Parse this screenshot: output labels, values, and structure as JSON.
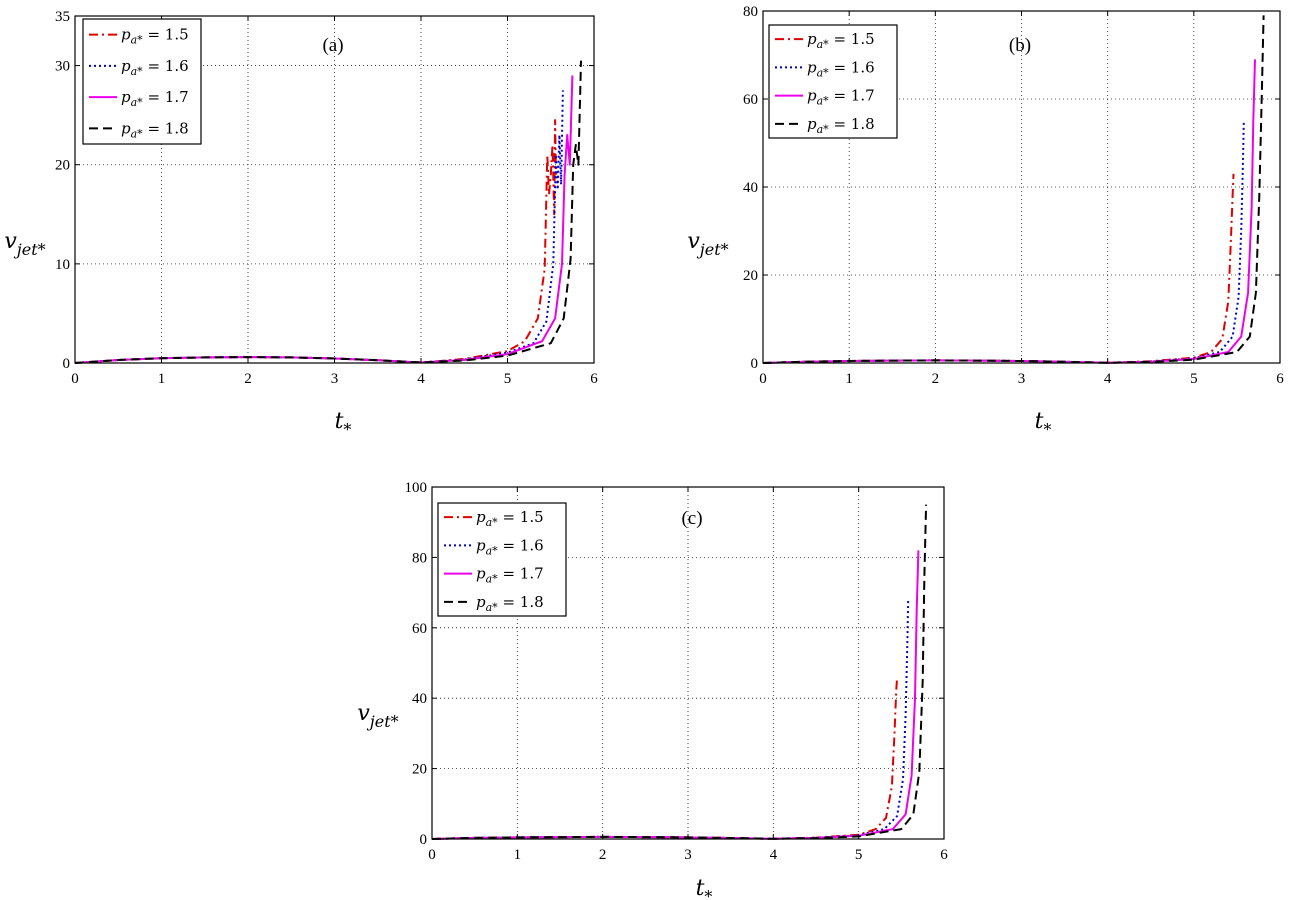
{
  "chart_data": [
    {
      "type": "line",
      "panel_label": "(a)",
      "xlabel": "t*",
      "ylabel": "v_jet*",
      "xlim": [
        0,
        6
      ],
      "ylim": [
        0,
        35
      ],
      "xticks": [
        0,
        1,
        2,
        3,
        4,
        5,
        6
      ],
      "yticks": [
        0,
        10,
        20,
        30,
        35
      ],
      "grid": true,
      "legend_position": "top-left",
      "series": [
        {
          "name": "p_a* = 1.5",
          "color": "#e00000",
          "dash": "dashdot",
          "x": [
            0,
            0.5,
            1,
            1.5,
            2,
            2.5,
            3,
            3.5,
            4,
            4.5,
            5,
            5.2,
            5.35,
            5.43,
            5.46,
            5.48,
            5.5,
            5.52,
            5.54,
            5.55,
            5.56
          ],
          "y": [
            0,
            0.3,
            0.48,
            0.56,
            0.6,
            0.56,
            0.45,
            0.28,
            0.05,
            0.4,
            1.2,
            2.2,
            4.5,
            9.5,
            21,
            17,
            19,
            22,
            15,
            24.5,
            19
          ]
        },
        {
          "name": "p_a* = 1.6",
          "color": "#0000cc",
          "dash": "dotted",
          "x": [
            0,
            0.5,
            1,
            1.5,
            2,
            2.5,
            3,
            3.5,
            4,
            4.5,
            5,
            5.3,
            5.45,
            5.53,
            5.56,
            5.58,
            5.6,
            5.62,
            5.64
          ],
          "y": [
            0,
            0.3,
            0.48,
            0.56,
            0.6,
            0.56,
            0.45,
            0.28,
            0.05,
            0.35,
            1.05,
            2,
            4.2,
            10,
            21,
            17.5,
            23,
            18,
            27.5
          ]
        },
        {
          "name": "p_a* = 1.7",
          "color": "#ee00ee",
          "dash": "solid",
          "x": [
            0,
            0.5,
            1,
            1.5,
            2,
            2.5,
            3,
            3.5,
            4,
            4.5,
            5,
            5.4,
            5.55,
            5.63,
            5.66,
            5.69,
            5.72,
            5.75
          ],
          "y": [
            0,
            0.3,
            0.48,
            0.56,
            0.6,
            0.56,
            0.45,
            0.28,
            0.05,
            0.3,
            0.9,
            2.2,
            4.5,
            10,
            19,
            23,
            20,
            29
          ]
        },
        {
          "name": "p_a* = 1.8",
          "color": "#000000",
          "dash": "dashed",
          "x": [
            0,
            0.5,
            1,
            1.5,
            2,
            2.5,
            3,
            3.5,
            4,
            4.5,
            5,
            5.5,
            5.65,
            5.73,
            5.76,
            5.79,
            5.82,
            5.85
          ],
          "y": [
            0,
            0.3,
            0.48,
            0.56,
            0.6,
            0.56,
            0.45,
            0.28,
            0.05,
            0.25,
            0.75,
            2,
            4.5,
            10.5,
            20,
            22,
            20,
            30.5
          ]
        }
      ]
    },
    {
      "type": "line",
      "panel_label": "(b)",
      "xlabel": "t*",
      "ylabel": "v_jet*",
      "xlim": [
        0,
        6
      ],
      "ylim": [
        0,
        80
      ],
      "xticks": [
        0,
        1,
        2,
        3,
        4,
        5,
        6
      ],
      "yticks": [
        0,
        20,
        40,
        60,
        80
      ],
      "grid": true,
      "legend_position": "top-left",
      "series": [
        {
          "name": "p_a* = 1.5",
          "color": "#e00000",
          "dash": "dashdot",
          "x": [
            0,
            0.5,
            1,
            1.5,
            2,
            2.5,
            3,
            3.5,
            4,
            4.5,
            5,
            5.2,
            5.33,
            5.4,
            5.43,
            5.45,
            5.46
          ],
          "y": [
            0,
            0.3,
            0.45,
            0.55,
            0.6,
            0.55,
            0.45,
            0.28,
            0.05,
            0.4,
            1.2,
            2.5,
            5.5,
            14,
            28,
            38,
            43
          ]
        },
        {
          "name": "p_a* = 1.6",
          "color": "#0000cc",
          "dash": "dotted",
          "x": [
            0,
            0.5,
            1,
            1.5,
            2,
            2.5,
            3,
            3.5,
            4,
            4.5,
            5,
            5.3,
            5.45,
            5.52,
            5.55,
            5.57,
            5.58
          ],
          "y": [
            0,
            0.3,
            0.45,
            0.55,
            0.6,
            0.55,
            0.45,
            0.28,
            0.05,
            0.35,
            1.05,
            2.5,
            6,
            15,
            30,
            45,
            55
          ]
        },
        {
          "name": "p_a* = 1.7",
          "color": "#ee00ee",
          "dash": "solid",
          "x": [
            0,
            0.5,
            1,
            1.5,
            2,
            2.5,
            3,
            3.5,
            4,
            4.5,
            5,
            5.4,
            5.55,
            5.63,
            5.67,
            5.69,
            5.71
          ],
          "y": [
            0,
            0.3,
            0.45,
            0.55,
            0.6,
            0.55,
            0.45,
            0.28,
            0.05,
            0.3,
            0.9,
            2.5,
            6,
            16,
            35,
            55,
            69
          ]
        },
        {
          "name": "p_a* = 1.8",
          "color": "#000000",
          "dash": "dashed",
          "x": [
            0,
            0.5,
            1,
            1.5,
            2,
            2.5,
            3,
            3.5,
            4,
            4.5,
            5,
            5.5,
            5.65,
            5.72,
            5.76,
            5.79,
            5.81
          ],
          "y": [
            0,
            0.3,
            0.45,
            0.55,
            0.6,
            0.55,
            0.45,
            0.28,
            0.05,
            0.25,
            0.75,
            2.5,
            6,
            16,
            38,
            62,
            79
          ]
        }
      ]
    },
    {
      "type": "line",
      "panel_label": "(c)",
      "xlabel": "t*",
      "ylabel": "v_jet*",
      "xlim": [
        0,
        6
      ],
      "ylim": [
        0,
        100
      ],
      "xticks": [
        0,
        1,
        2,
        3,
        4,
        5,
        6
      ],
      "yticks": [
        0,
        20,
        40,
        60,
        80,
        100
      ],
      "grid": true,
      "legend_position": "top-left",
      "series": [
        {
          "name": "p_a* = 1.5",
          "color": "#e00000",
          "dash": "dashdot",
          "x": [
            0,
            0.5,
            1,
            1.5,
            2,
            2.5,
            3,
            3.5,
            4,
            4.5,
            5,
            5.2,
            5.32,
            5.39,
            5.42,
            5.44,
            5.45
          ],
          "y": [
            0,
            0.3,
            0.45,
            0.55,
            0.6,
            0.55,
            0.45,
            0.28,
            0.05,
            0.4,
            1.2,
            2.8,
            6,
            15,
            30,
            42,
            46
          ]
        },
        {
          "name": "p_a* = 1.6",
          "color": "#0000cc",
          "dash": "dotted",
          "x": [
            0,
            0.5,
            1,
            1.5,
            2,
            2.5,
            3,
            3.5,
            4,
            4.5,
            5,
            5.3,
            5.45,
            5.52,
            5.55,
            5.57,
            5.58
          ],
          "y": [
            0,
            0.3,
            0.45,
            0.55,
            0.6,
            0.55,
            0.45,
            0.28,
            0.05,
            0.35,
            1.05,
            2.8,
            6.5,
            17,
            35,
            55,
            68
          ]
        },
        {
          "name": "p_a* = 1.7",
          "color": "#ee00ee",
          "dash": "solid",
          "x": [
            0,
            0.5,
            1,
            1.5,
            2,
            2.5,
            3,
            3.5,
            4,
            4.5,
            5,
            5.4,
            5.55,
            5.62,
            5.66,
            5.68,
            5.7
          ],
          "y": [
            0,
            0.3,
            0.45,
            0.55,
            0.6,
            0.55,
            0.45,
            0.28,
            0.05,
            0.3,
            0.9,
            2.8,
            7,
            18,
            40,
            65,
            82
          ]
        },
        {
          "name": "p_a* = 1.8",
          "color": "#000000",
          "dash": "dashed",
          "x": [
            0,
            0.5,
            1,
            1.5,
            2,
            2.5,
            3,
            3.5,
            4,
            4.5,
            5,
            5.5,
            5.64,
            5.71,
            5.75,
            5.77,
            5.79
          ],
          "y": [
            0,
            0.3,
            0.45,
            0.55,
            0.6,
            0.55,
            0.45,
            0.28,
            0.05,
            0.25,
            0.75,
            2.8,
            7,
            19,
            45,
            75,
            95
          ]
        }
      ]
    }
  ]
}
